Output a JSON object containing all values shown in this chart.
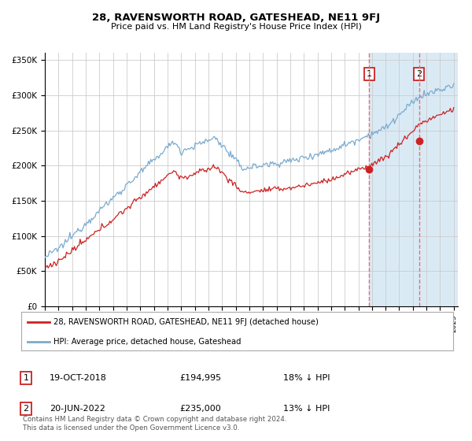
{
  "title": "28, RAVENSWORTH ROAD, GATESHEAD, NE11 9FJ",
  "subtitle": "Price paid vs. HM Land Registry's House Price Index (HPI)",
  "ylim": [
    0,
    360000
  ],
  "yticks": [
    0,
    50000,
    100000,
    150000,
    200000,
    250000,
    300000,
    350000
  ],
  "ytick_labels": [
    "£0",
    "£50K",
    "£100K",
    "£150K",
    "£200K",
    "£250K",
    "£300K",
    "£350K"
  ],
  "purchase1": {
    "date": "19-OCT-2018",
    "price": 194995,
    "year": 2018.8,
    "label": "1",
    "note": "18% ↓ HPI"
  },
  "purchase2": {
    "date": "20-JUN-2022",
    "price": 235000,
    "year": 2022.46,
    "label": "2",
    "note": "13% ↓ HPI"
  },
  "hpi_color": "#7aabcf",
  "price_color": "#cc2222",
  "vline_color": "#e87070",
  "shade_color": "#daeaf5",
  "legend_line1": "28, RAVENSWORTH ROAD, GATESHEAD, NE11 9FJ (detached house)",
  "legend_line2": "HPI: Average price, detached house, Gateshead",
  "footer": "Contains HM Land Registry data © Crown copyright and database right 2024.\nThis data is licensed under the Open Government Licence v3.0.",
  "background_color": "#ffffff",
  "grid_color": "#cccccc",
  "xlim_start": 1995.0,
  "xlim_end": 2025.3
}
